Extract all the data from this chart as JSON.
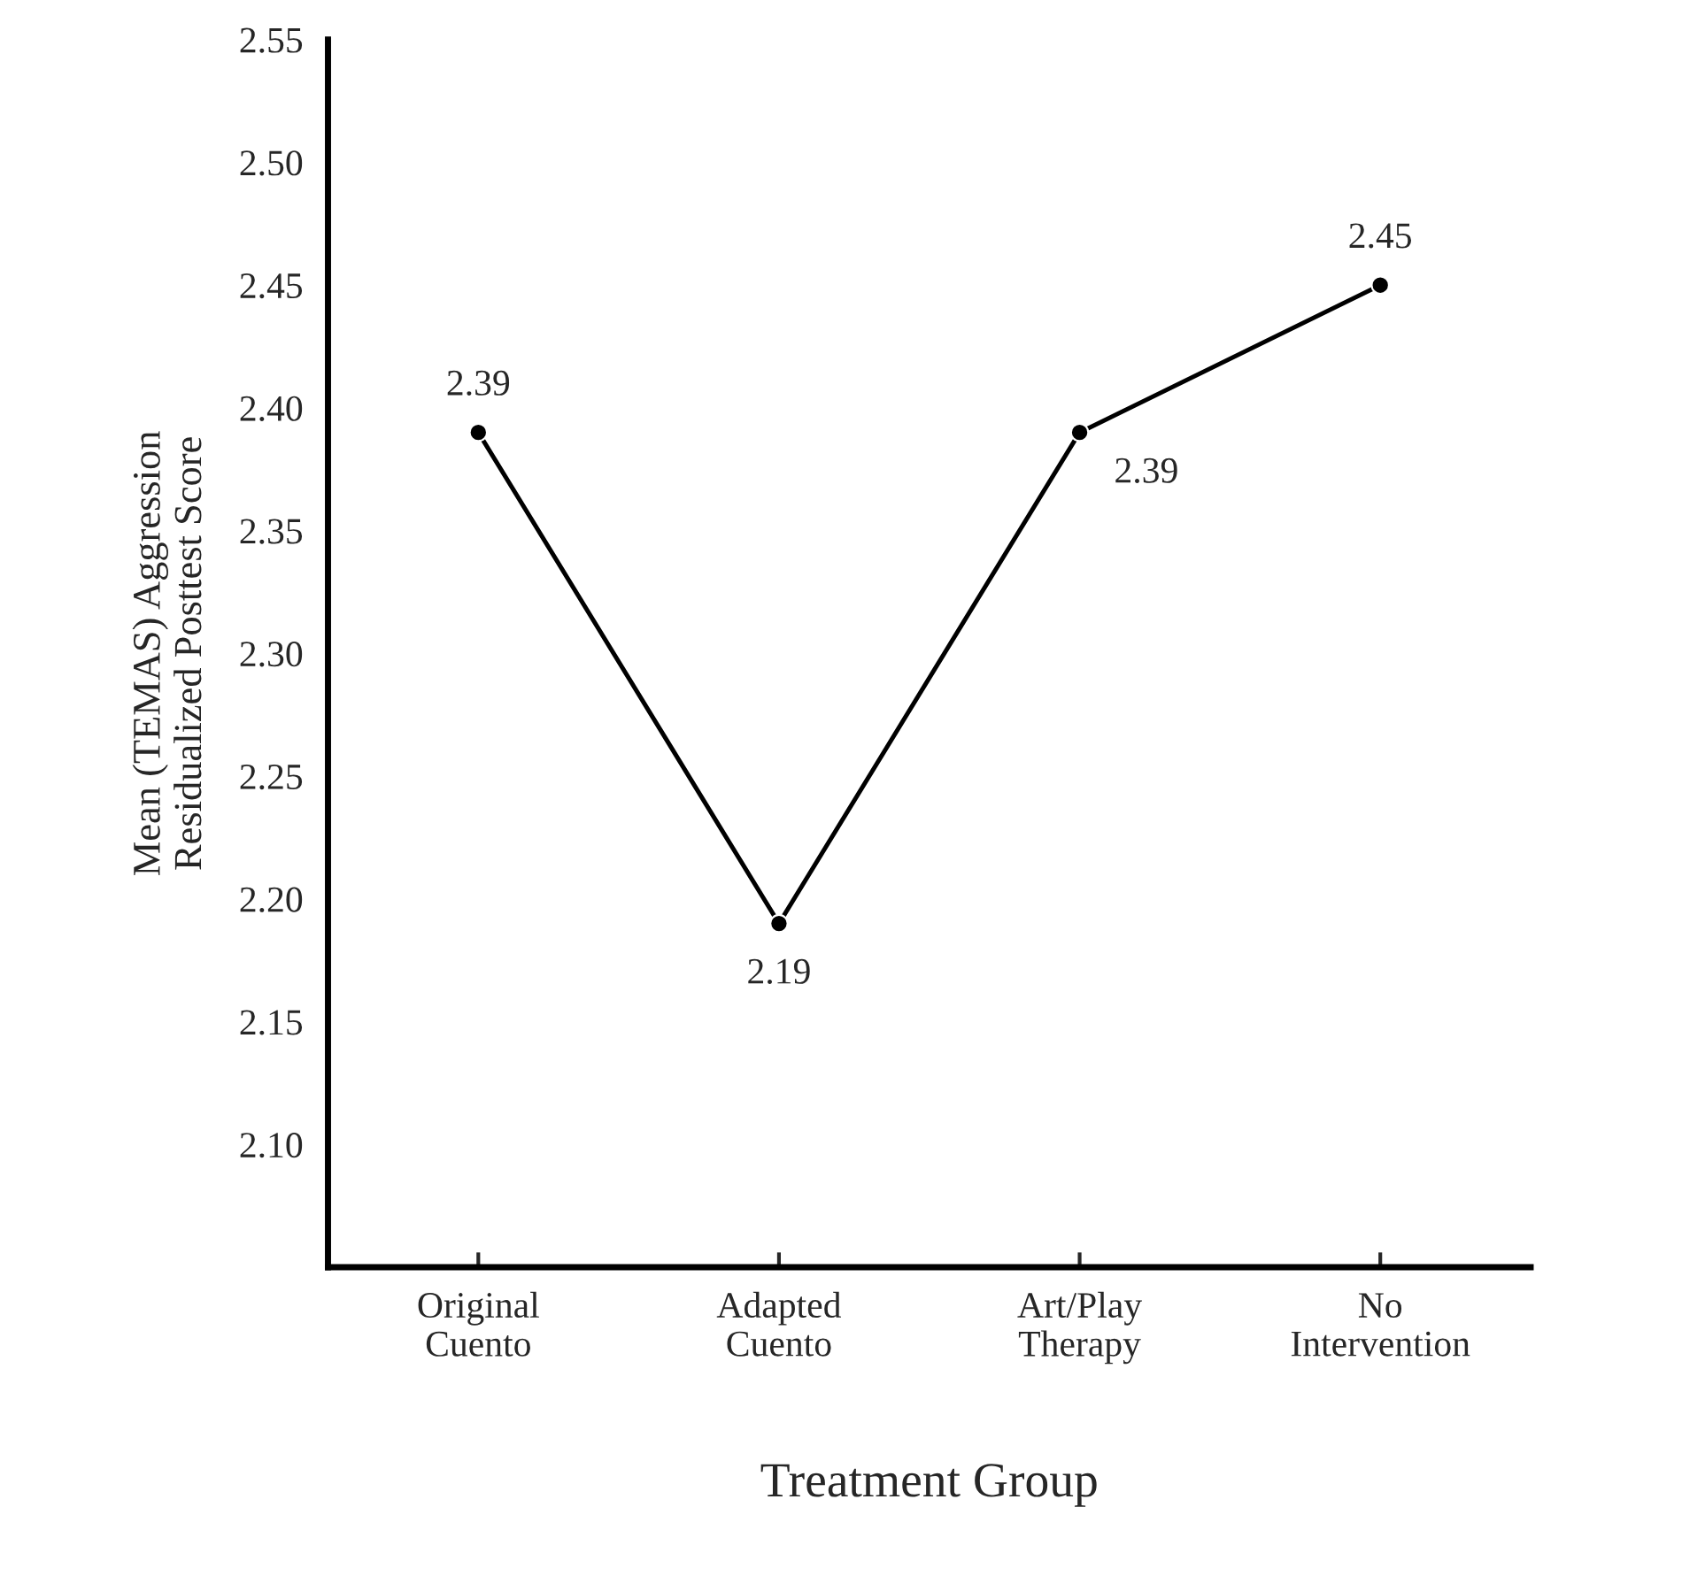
{
  "chart_data": {
    "type": "line",
    "xlabel": "Treatment Group",
    "ylabel": "Mean (TEMAS) Aggression\nResidualized Posttest Score",
    "categories": [
      "Original\nCuento",
      "Adapted\nCuento",
      "Art/Play\nTherapy",
      "No\nIntervention"
    ],
    "series": [
      {
        "color": "#000000",
        "values": [
          2.39,
          2.19,
          2.39,
          2.45
        ]
      }
    ],
    "ylim": [
      2.05,
      2.55
    ],
    "yticks": [
      {
        "value": 2.1,
        "label": "2.10"
      },
      {
        "value": 2.15,
        "label": "2.15"
      },
      {
        "value": 2.2,
        "label": "2.20"
      },
      {
        "value": 2.25,
        "label": "2.25"
      },
      {
        "value": 2.3,
        "label": "2.30"
      },
      {
        "value": 2.35,
        "label": "2.35"
      },
      {
        "value": 2.4,
        "label": "2.40"
      },
      {
        "value": 2.45,
        "label": "2.45"
      },
      {
        "value": 2.5,
        "label": "2.50"
      },
      {
        "value": 2.55,
        "label": "2.55"
      }
    ],
    "data_labels": true,
    "marker": "circle",
    "line_style": "solid"
  }
}
